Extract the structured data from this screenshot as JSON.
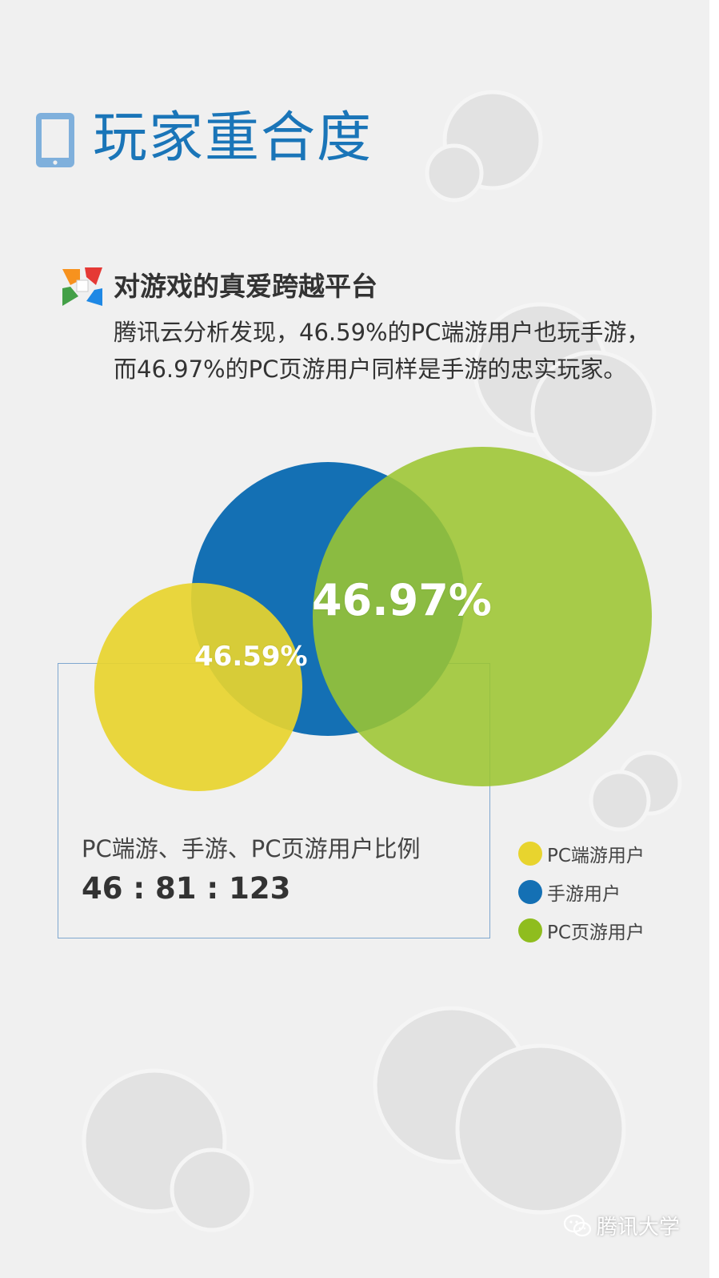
{
  "title": "玩家重合度",
  "section": {
    "heading": "对游戏的真爱跨越平台",
    "body": "腾讯云分析发现，46.59%的PC端游用户也玩手游，而46.97%的PC页游用户同样是手游的忠实玩家。"
  },
  "venn": {
    "sets": [
      {
        "name": "PC端游用户",
        "size": 46,
        "color": "#e8d42e"
      },
      {
        "name": "手游用户",
        "size": 81,
        "color": "#1470b4"
      },
      {
        "name": "PC页游用户",
        "size": 123,
        "color": "#9cc531"
      }
    ],
    "overlap_labels": {
      "mobile_and_pc_web": "46.97%",
      "pc_client_and_mobile": "46.59%"
    }
  },
  "ratio": {
    "label": "PC端游、手游、PC页游用户比例",
    "value": "46 : 81 : 123"
  },
  "legend": [
    {
      "label": "PC端游用户",
      "color": "#e8d42e"
    },
    {
      "label": "手游用户",
      "color": "#1470b4"
    },
    {
      "label": "PC页游用户",
      "color": "#8fbd1e"
    }
  ],
  "footer": {
    "text": "腾讯大学",
    "icon": "wechat-icon"
  },
  "colors": {
    "title": "#1a75b8",
    "background": "#f0f0f0",
    "decor": "#e2e2e2"
  }
}
